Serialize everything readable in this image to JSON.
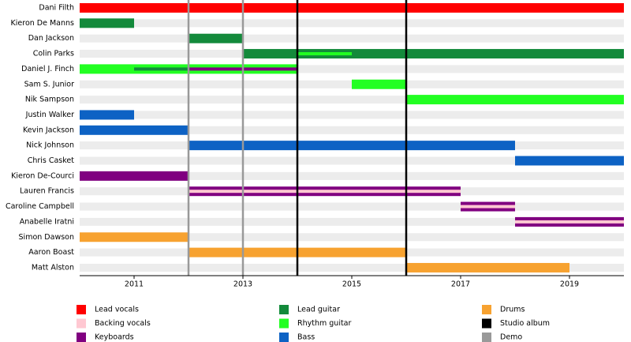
{
  "chart_data": {
    "type": "timeline",
    "categories": [
      "Dani Filth",
      "Kieron De Manns",
      "Dan Jackson",
      "Colin Parks",
      "Daniel J. Finch",
      "Sam S. Junior",
      "Nik Sampson",
      "Justin Walker",
      "Kevin Jackson",
      "Nick Johnson",
      "Chris Casket",
      "Kieron De-Courci",
      "Lauren Francis",
      "Caroline Campbell",
      "Anabelle Iratni",
      "Simon Dawson",
      "Aaron Boast",
      "Matt Alston"
    ],
    "xlim": [
      2010,
      2020
    ],
    "xticks": [
      2011,
      2013,
      2015,
      2017,
      2019
    ],
    "series": [
      {
        "name": "Lead vocals",
        "color": "#ff0000",
        "bars": [
          {
            "member": "Dani Filth",
            "start": 2010,
            "end": 2020
          }
        ]
      },
      {
        "name": "Backing vocals",
        "color": "#ffc8d2",
        "stripes": [
          {
            "member": "Lauren Francis",
            "start": 2012,
            "end": 2017
          },
          {
            "member": "Caroline Campbell",
            "start": 2017,
            "end": 2018
          },
          {
            "member": "Anabelle Iratni",
            "start": 2018,
            "end": 2020
          }
        ]
      },
      {
        "name": "Keyboards",
        "color": "#800080",
        "bars": [
          {
            "member": "Kieron De-Courci",
            "start": 2010,
            "end": 2012
          },
          {
            "member": "Lauren Francis",
            "start": 2012,
            "end": 2017
          },
          {
            "member": "Caroline Campbell",
            "start": 2017,
            "end": 2018
          },
          {
            "member": "Anabelle Iratni",
            "start": 2018,
            "end": 2020
          }
        ],
        "stripes": [
          {
            "member": "Daniel J. Finch",
            "start": 2012,
            "end": 2014
          }
        ]
      },
      {
        "name": "Lead guitar",
        "color": "#138a3b",
        "bars": [
          {
            "member": "Kieron De Manns",
            "start": 2010,
            "end": 2011
          },
          {
            "member": "Dan Jackson",
            "start": 2012,
            "end": 2013
          },
          {
            "member": "Colin Parks",
            "start": 2013,
            "end": 2020
          }
        ],
        "stripes": [
          {
            "member": "Daniel J. Finch",
            "start": 2011,
            "end": 2012
          }
        ]
      },
      {
        "name": "Rhythm guitar",
        "color": "#22ff22",
        "bars": [
          {
            "member": "Daniel J. Finch",
            "start": 2010,
            "end": 2014
          },
          {
            "member": "Sam S. Junior",
            "start": 2015,
            "end": 2016
          },
          {
            "member": "Nik Sampson",
            "start": 2016,
            "end": 2020
          }
        ],
        "stripes": [
          {
            "member": "Colin Parks",
            "start": 2014,
            "end": 2015
          }
        ]
      },
      {
        "name": "Bass",
        "color": "#0d62c4",
        "bars": [
          {
            "member": "Justin Walker",
            "start": 2010,
            "end": 2011
          },
          {
            "member": "Kevin Jackson",
            "start": 2010,
            "end": 2012
          },
          {
            "member": "Nick Johnson",
            "start": 2012,
            "end": 2018
          },
          {
            "member": "Chris Casket",
            "start": 2018,
            "end": 2020
          }
        ]
      },
      {
        "name": "Drums",
        "color": "#f7a230",
        "bars": [
          {
            "member": "Simon Dawson",
            "start": 2010,
            "end": 2012
          },
          {
            "member": "Aaron Boast",
            "start": 2012,
            "end": 2016
          },
          {
            "member": "Matt Alston",
            "start": 2016,
            "end": 2019
          }
        ]
      }
    ],
    "events": [
      {
        "name": "Studio album",
        "color": "#000000",
        "x": [
          2014,
          2016
        ]
      },
      {
        "name": "Demo",
        "color": "#999999",
        "x": [
          2012,
          2013
        ]
      }
    ]
  }
}
